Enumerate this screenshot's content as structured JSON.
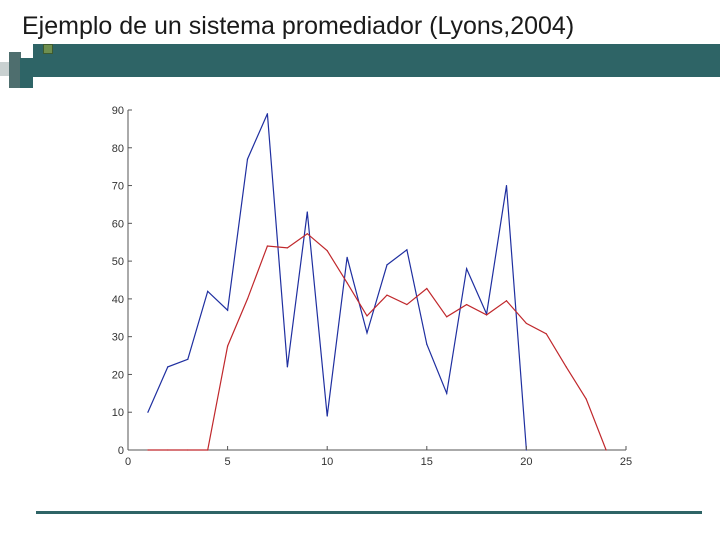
{
  "slide": {
    "title": "Ejemplo de un sistema promediador (Lyons,2004)"
  },
  "colors": {
    "accent": "#2e6466",
    "deco_green": "#6f8f4f",
    "input_series": "#1f2fa0",
    "output_series": "#c0282c"
  },
  "chart_data": {
    "type": "line",
    "title": "",
    "xlabel": "",
    "ylabel": "",
    "xlim": [
      0,
      25
    ],
    "ylim": [
      0,
      90
    ],
    "xticks": [
      0,
      5,
      10,
      15,
      20,
      25
    ],
    "yticks": [
      0,
      10,
      20,
      30,
      40,
      50,
      60,
      70,
      80,
      90
    ],
    "grid": false,
    "legend": "none",
    "series": [
      {
        "color": "#1f2fa0",
        "x": [
          1,
          2,
          3,
          4,
          5,
          6,
          7,
          8,
          9,
          10,
          11,
          12,
          13,
          14,
          15,
          16,
          17,
          18,
          19,
          20
        ],
        "y": [
          10,
          22,
          24,
          42,
          37,
          77,
          89,
          22,
          63,
          9,
          51,
          31,
          49,
          53,
          28,
          15,
          48,
          36,
          70,
          0
        ]
      },
      {
        "color": "#c0282c",
        "x": [
          1,
          2,
          3,
          4,
          5,
          6,
          7,
          8,
          9,
          10,
          11,
          12,
          13,
          14,
          15,
          16,
          17,
          18,
          19,
          20,
          21,
          22,
          23,
          24
        ],
        "y": [
          0,
          0,
          0,
          0,
          27.5,
          40,
          54,
          53.5,
          57.25,
          52.75,
          44.25,
          35.5,
          41,
          38.5,
          42.75,
          35.25,
          38.5,
          35.75,
          39.5,
          33.5,
          30.75,
          22,
          13.5,
          0
        ]
      }
    ]
  }
}
